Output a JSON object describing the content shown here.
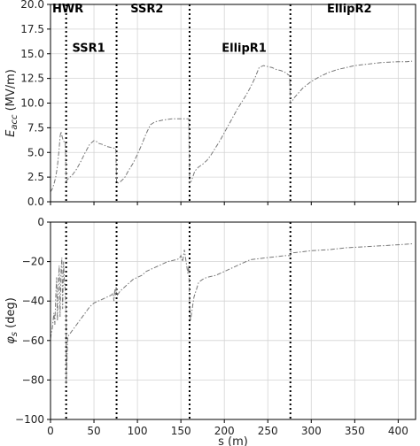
{
  "chart_data": [
    {
      "type": "line",
      "title": "",
      "xlabel": "",
      "ylabel": "E_acc (MV/m)",
      "ylabel_parts": {
        "symbol": "E",
        "subscript": "acc",
        "unit": " (MV/m)"
      },
      "xlim": [
        0,
        420
      ],
      "ylim": [
        0,
        20
      ],
      "xticks": [
        0,
        50,
        100,
        150,
        200,
        250,
        300,
        350,
        400
      ],
      "yticks": [
        "0.0",
        "2.5",
        "5.0",
        "7.5",
        "10.0",
        "12.5",
        "15.0",
        "17.5",
        "20.0"
      ],
      "grid": true,
      "section_boundaries": [
        18,
        76,
        160,
        276
      ],
      "section_labels": [
        {
          "text": "HWR",
          "x": 2,
          "y": 19.2
        },
        {
          "text": "SSR1",
          "x": 25,
          "y": 15.2
        },
        {
          "text": "SSR2",
          "x": 92,
          "y": 19.2
        },
        {
          "text": "EllipR1",
          "x": 197,
          "y": 15.2
        },
        {
          "text": "EllipR2",
          "x": 318,
          "y": 19.2
        }
      ],
      "series": [
        {
          "x": [
            0,
            2,
            4,
            6,
            8,
            10,
            11,
            12,
            13,
            14,
            15,
            16,
            17,
            18,
            20,
            25,
            30,
            35,
            40,
            45,
            50,
            53,
            56,
            60,
            65,
            70,
            75,
            76,
            78,
            80,
            85,
            90,
            95,
            100,
            105,
            110,
            115,
            120,
            130,
            140,
            150,
            155,
            158,
            159,
            160,
            162,
            164,
            166,
            168,
            170,
            175,
            180,
            185,
            190,
            195,
            200,
            205,
            210,
            215,
            220,
            225,
            230,
            235,
            240,
            245,
            250,
            255,
            260,
            265,
            270,
            273,
            275,
            276,
            278,
            280,
            285,
            290,
            300,
            310,
            320,
            330,
            340,
            350,
            360,
            370,
            380,
            390,
            400,
            410,
            416
          ],
          "y": [
            1.0,
            1.3,
            1.8,
            2.5,
            3.6,
            5.4,
            6.6,
            7.1,
            6.7,
            6.4,
            6.2,
            6.0,
            6.0,
            2.1,
            2.3,
            2.7,
            3.3,
            4.1,
            5.0,
            5.8,
            6.2,
            6.1,
            5.9,
            5.8,
            5.6,
            5.5,
            5.4,
            2.0,
            1.9,
            2.0,
            2.4,
            3.2,
            3.9,
            4.8,
            5.8,
            6.9,
            7.8,
            8.1,
            8.3,
            8.4,
            8.4,
            8.4,
            8.4,
            8.4,
            1.9,
            2.1,
            2.6,
            3.1,
            3.3,
            3.5,
            3.8,
            4.2,
            4.8,
            5.5,
            6.2,
            7.0,
            7.8,
            8.6,
            9.4,
            10.1,
            10.8,
            11.6,
            12.5,
            13.6,
            13.8,
            13.7,
            13.6,
            13.4,
            13.3,
            13.1,
            12.9,
            12.8,
            10.0,
            10.2,
            10.5,
            11.0,
            11.5,
            12.2,
            12.7,
            13.1,
            13.4,
            13.6,
            13.8,
            13.9,
            14.0,
            14.1,
            14.15,
            14.2,
            14.2,
            14.25
          ]
        }
      ]
    },
    {
      "type": "line",
      "title": "",
      "xlabel": "s (m)",
      "ylabel": "φs (deg)",
      "ylabel_parts": {
        "symbol": "φ",
        "subscript": "s",
        "unit": " (deg)"
      },
      "xlim": [
        0,
        420
      ],
      "ylim": [
        -100,
        0
      ],
      "xticks": [
        0,
        50,
        100,
        150,
        200,
        250,
        300,
        350,
        400
      ],
      "yticks": [
        "−100",
        "−80",
        "−60",
        "−40",
        "−20",
        "0"
      ],
      "grid": true,
      "section_boundaries": [
        18,
        76,
        160,
        276
      ],
      "series": [
        {
          "x": [
            0,
            1,
            2,
            3,
            4,
            5,
            6,
            7,
            8,
            9,
            10,
            11,
            12,
            13,
            14,
            15,
            16,
            17,
            18,
            18,
            19,
            19.5,
            20,
            25,
            30,
            35,
            40,
            45,
            50,
            55,
            60,
            65,
            70,
            72,
            73,
            74,
            75,
            75.5,
            76,
            77,
            80,
            85,
            90,
            95,
            100,
            105,
            110,
            115,
            120,
            125,
            130,
            135,
            140,
            145,
            148,
            150,
            152,
            154,
            156,
            158,
            159,
            160,
            161,
            162,
            163,
            165,
            168,
            170,
            172,
            175,
            180,
            190,
            200,
            210,
            220,
            230,
            240,
            250,
            260,
            270,
            276,
            276,
            280,
            290,
            300,
            320,
            340,
            360,
            380,
            400,
            416
          ],
          "y": [
            -59,
            -56,
            -54,
            -50,
            -46,
            -52,
            -38,
            -28,
            -50,
            -32,
            -22,
            -48,
            -26,
            -18,
            -44,
            -20,
            -30,
            -35,
            -50,
            -82,
            -70,
            -62,
            -58,
            -55,
            -52,
            -49,
            -46,
            -43,
            -41,
            -40,
            -39,
            -38,
            -37,
            -36,
            -40,
            -34,
            -37,
            -33,
            -36,
            -37,
            -35,
            -33,
            -31,
            -29,
            -28,
            -27,
            -25,
            -24,
            -23,
            -22,
            -21,
            -20,
            -19.5,
            -19,
            -18.5,
            -17,
            -20,
            -14,
            -20,
            -26,
            -22,
            -42,
            -50,
            -47,
            -44,
            -38,
            -34,
            -31,
            -30,
            -29,
            -28,
            -27,
            -25,
            -23,
            -21,
            -19,
            -18.5,
            -18,
            -17.5,
            -17,
            -17,
            -15,
            -15.5,
            -15,
            -14.5,
            -14,
            -13,
            -12.5,
            -12,
            -11.5,
            -11
          ]
        }
      ]
    }
  ]
}
